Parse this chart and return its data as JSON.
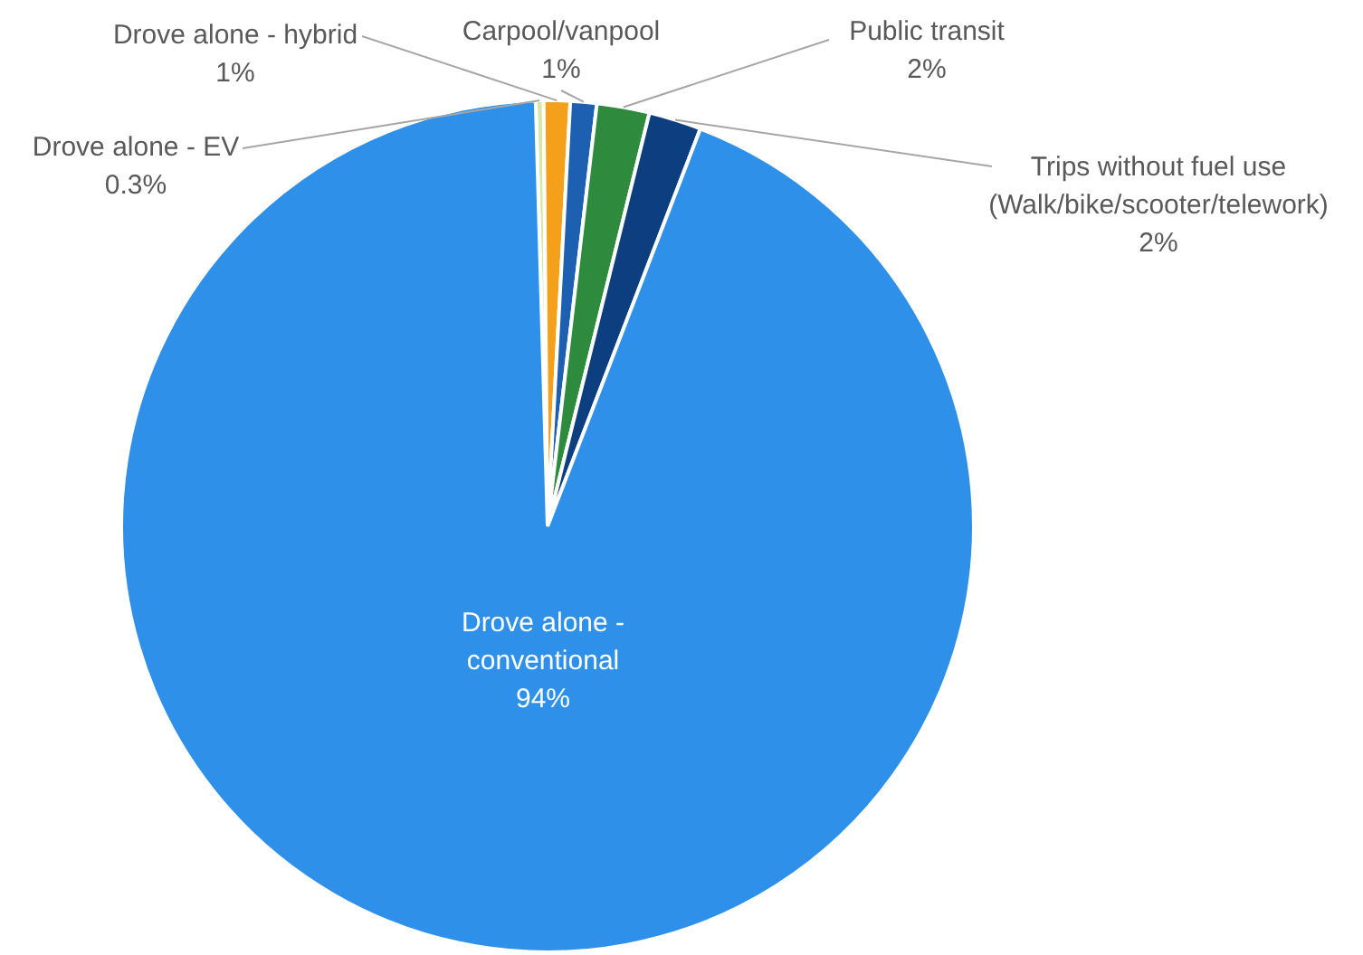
{
  "chart_data": {
    "type": "pie",
    "categories": [
      "Drove alone - EV",
      "Drove alone - hybrid",
      "Carpool/vanpool",
      "Public transit",
      "Trips without fuel use\n(Walk/bike/scooter/telework)",
      "Drove alone -\nconventional"
    ],
    "values": [
      0.3,
      1,
      1,
      2,
      2,
      94
    ],
    "colors": [
      "#d6e8a4",
      "#f5a01a",
      "#1d5fb0",
      "#2e8b3e",
      "#0d3f80",
      "#2e90e8"
    ],
    "value_labels": [
      "0.3%",
      "1%",
      "1%",
      "2%",
      "2%",
      "94%"
    ],
    "legend": false
  }
}
